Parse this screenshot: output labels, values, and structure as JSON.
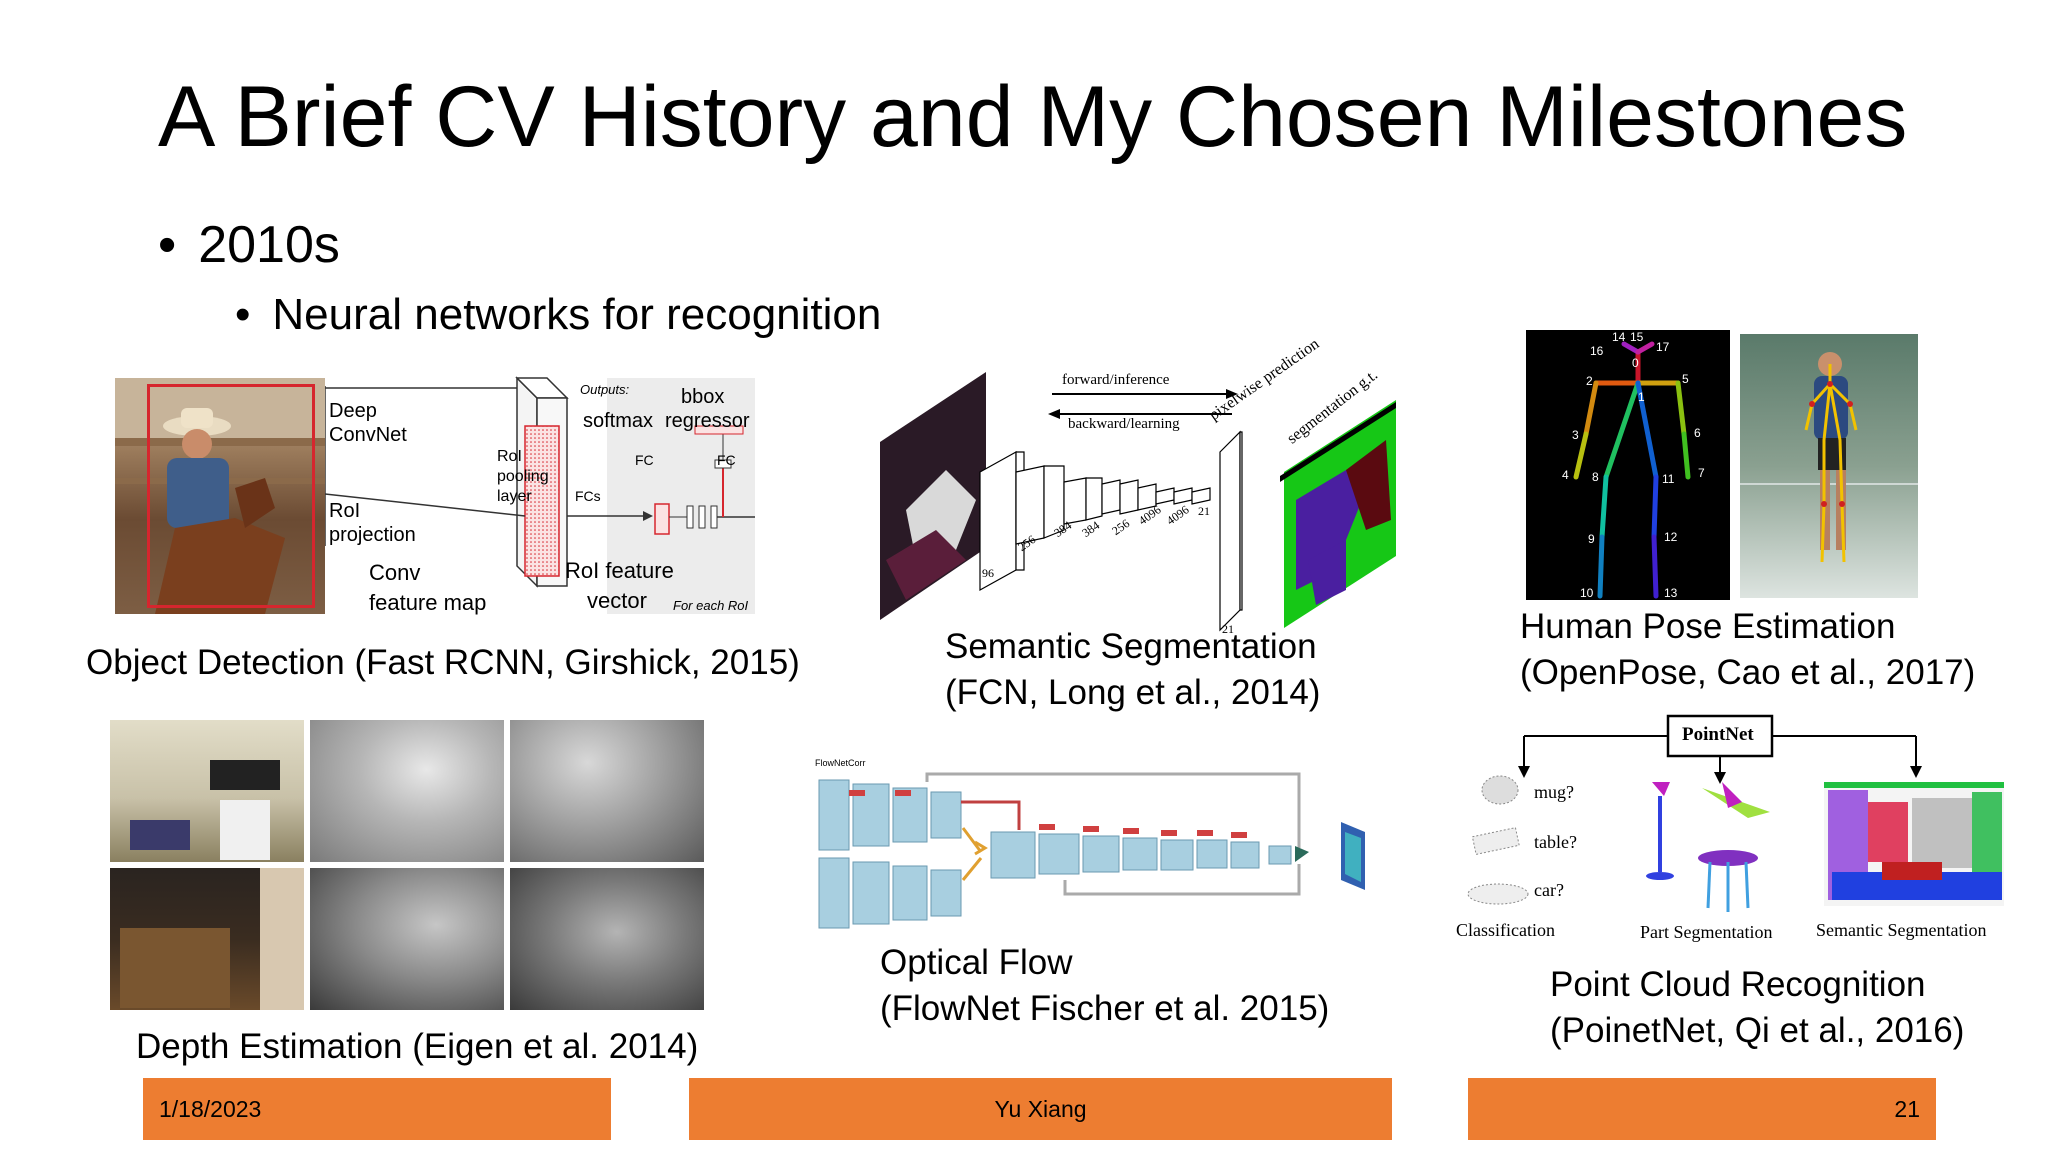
{
  "slide": {
    "title": "A Brief CV History and My Chosen Milestones",
    "bullet_1": "2010s",
    "bullet_2": "Neural networks for recognition"
  },
  "panels": {
    "object_detection": {
      "caption": "Object Detection (Fast RCNN, Girshick, 2015)",
      "labels": {
        "deep": "Deep",
        "convnet": "ConvNet",
        "roi": "RoI",
        "projection": "projection",
        "conv": "Conv",
        "feature_map": "feature map",
        "outputs": "Outputs:",
        "bbox": "bbox",
        "softmax": "softmax",
        "regressor": "regressor",
        "fc1": "FC",
        "fc2": "FC",
        "roi_pooling": "RoI",
        "pooling": "pooling",
        "layer": "layer",
        "fcs": "FCs",
        "roi_feature": "RoI feature",
        "vector": "vector",
        "for_each_roi": "For each RoI"
      }
    },
    "semantic_segmentation": {
      "caption_1": "Semantic Segmentation",
      "caption_2": "(FCN, Long et al., 2014)",
      "labels": {
        "forward": "forward/inference",
        "backward": "backward/learning",
        "pixelwise": "pixelwise prediction",
        "seg_gt": "segmentation g.t.",
        "n96": "96",
        "n256": "256",
        "n384a": "384",
        "n384b": "384",
        "n256b": "256",
        "n4096a": "4096",
        "n4096b": "4096",
        "n21a": "21",
        "n21b": "21"
      }
    },
    "pose_estimation": {
      "caption_1": "Human Pose Estimation",
      "caption_2": "(OpenPose, Cao et al., 2017)",
      "keypoints": [
        "0",
        "1",
        "2",
        "3",
        "4",
        "5",
        "6",
        "7",
        "8",
        "9",
        "10",
        "11",
        "12",
        "13",
        "14",
        "15",
        "16",
        "17"
      ]
    },
    "depth_estimation": {
      "caption": "Depth Estimation (Eigen et al. 2014)"
    },
    "optical_flow": {
      "caption_1": "Optical Flow",
      "caption_2": "(FlowNet  Fischer et al. 2015)",
      "labels": {
        "flownetcorr": "FlowNetCorr"
      }
    },
    "point_cloud": {
      "caption_1": "Point Cloud Recognition",
      "caption_2": "(PoinetNet, Qi et al., 2016)",
      "labels": {
        "pointnet": "PointNet",
        "mug": "mug?",
        "table": "table?",
        "car": "car?",
        "classification": "Classification",
        "part_seg": "Part Segmentation",
        "sem_seg": "Semantic Segmentation"
      }
    }
  },
  "footer": {
    "date": "1/18/2023",
    "author": "Yu Xiang",
    "page": "21"
  },
  "colors": {
    "footer_bar": "#ed7d31",
    "detection_box": "#d6262e",
    "tensor_fill": "#a8cfe0",
    "seg_green": "#16c716",
    "seg_purple": "#4a1fa0",
    "seg_maroon": "#5a0a10"
  }
}
